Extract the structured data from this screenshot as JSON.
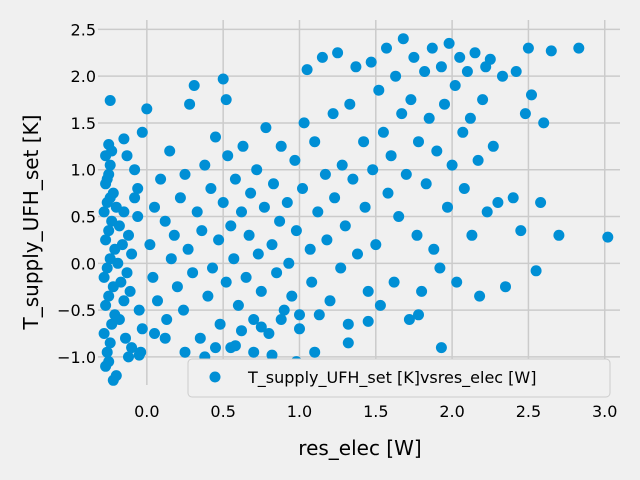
{
  "chart_data": {
    "type": "scatter",
    "title": "",
    "xlabel": "res_elec [W]",
    "ylabel": "T_supply_UFH_set [K]",
    "xlim": [
      -0.32,
      3.1
    ],
    "ylim": [
      -1.3,
      2.6
    ],
    "xticks": [
      0.0,
      0.5,
      1.0,
      1.5,
      2.0,
      2.5,
      3.0
    ],
    "xtick_labels": [
      "0.0",
      "0.5",
      "1.0",
      "1.5",
      "2.0",
      "2.5",
      "3.0"
    ],
    "yticks": [
      -1.0,
      -0.5,
      0.0,
      0.5,
      1.0,
      1.5,
      2.0,
      2.5
    ],
    "ytick_labels": [
      "−1.0",
      "−0.5",
      "0.0",
      "0.5",
      "1.0",
      "1.5",
      "2.0",
      "2.5"
    ],
    "grid": true,
    "legend_position": "lower-right",
    "marker_color": "#008fd5",
    "series": [
      {
        "name": "T_supply_UFH_set [K]vsres_elec [W]",
        "points": [
          [
            -0.27,
            -1.1
          ],
          [
            -0.25,
            -1.05
          ],
          [
            -0.22,
            -1.25
          ],
          [
            -0.2,
            -1.2
          ],
          [
            -0.26,
            -0.95
          ],
          [
            -0.24,
            -0.85
          ],
          [
            -0.28,
            -0.75
          ],
          [
            -0.23,
            -0.65
          ],
          [
            -0.21,
            -0.55
          ],
          [
            -0.27,
            -0.45
          ],
          [
            -0.25,
            -0.35
          ],
          [
            -0.22,
            -0.25
          ],
          [
            -0.28,
            -0.15
          ],
          [
            -0.26,
            -0.05
          ],
          [
            -0.24,
            0.05
          ],
          [
            -0.21,
            0.15
          ],
          [
            -0.27,
            0.25
          ],
          [
            -0.25,
            0.35
          ],
          [
            -0.23,
            0.45
          ],
          [
            -0.28,
            0.55
          ],
          [
            -0.26,
            0.65
          ],
          [
            -0.22,
            0.75
          ],
          [
            -0.27,
            0.85
          ],
          [
            -0.25,
            0.95
          ],
          [
            -0.24,
            1.05
          ],
          [
            -0.27,
            1.15
          ],
          [
            -0.25,
            1.27
          ],
          [
            -0.23,
            1.2
          ],
          [
            -0.26,
            0.9
          ],
          [
            -0.24,
            0.7
          ],
          [
            -0.2,
            0.6
          ],
          [
            -0.18,
            0.4
          ],
          [
            -0.16,
            0.2
          ],
          [
            -0.19,
            0.0
          ],
          [
            -0.17,
            -0.2
          ],
          [
            -0.15,
            -0.4
          ],
          [
            -0.18,
            -0.6
          ],
          [
            -0.14,
            -0.8
          ],
          [
            -0.12,
            -1.0
          ],
          [
            -0.1,
            -0.9
          ],
          [
            -0.15,
            0.55
          ],
          [
            -0.12,
            0.3
          ],
          [
            -0.1,
            0.1
          ],
          [
            -0.13,
            -0.1
          ],
          [
            -0.11,
            -0.3
          ],
          [
            -0.08,
            0.7
          ],
          [
            -0.06,
            0.5
          ],
          [
            -0.05,
            -0.5
          ],
          [
            -0.03,
            -0.7
          ],
          [
            -0.24,
            1.74
          ],
          [
            -0.15,
            1.33
          ],
          [
            -0.13,
            1.15
          ],
          [
            -0.08,
            1.0
          ],
          [
            -0.06,
            0.8
          ],
          [
            -0.03,
            1.4
          ],
          [
            0.0,
            1.65
          ],
          [
            -0.04,
            -0.95
          ],
          [
            0.02,
            0.2
          ],
          [
            0.04,
            -0.15
          ],
          [
            0.05,
            0.6
          ],
          [
            0.07,
            -0.4
          ],
          [
            0.09,
            0.9
          ],
          [
            0.12,
            0.45
          ],
          [
            0.13,
            -0.6
          ],
          [
            0.15,
            1.2
          ],
          [
            0.16,
            0.05
          ],
          [
            0.18,
            0.3
          ],
          [
            0.2,
            -0.25
          ],
          [
            0.22,
            0.7
          ],
          [
            0.24,
            -0.5
          ],
          [
            0.25,
            0.95
          ],
          [
            0.27,
            0.15
          ],
          [
            0.28,
            1.7
          ],
          [
            0.3,
            -0.1
          ],
          [
            0.31,
            1.9
          ],
          [
            0.33,
            0.55
          ],
          [
            0.35,
            -0.8
          ],
          [
            0.36,
            0.35
          ],
          [
            0.38,
            1.05
          ],
          [
            0.4,
            -0.35
          ],
          [
            0.42,
            0.8
          ],
          [
            0.43,
            -0.05
          ],
          [
            0.45,
            1.35
          ],
          [
            0.47,
            0.25
          ],
          [
            0.48,
            -0.65
          ],
          [
            0.5,
            0.65
          ],
          [
            0.52,
            -0.2
          ],
          [
            0.53,
            1.15
          ],
          [
            0.55,
            0.4
          ],
          [
            0.5,
            1.97
          ],
          [
            0.52,
            1.75
          ],
          [
            0.55,
            -0.9
          ],
          [
            0.57,
            0.05
          ],
          [
            0.58,
            0.9
          ],
          [
            0.6,
            -0.45
          ],
          [
            0.62,
            0.55
          ],
          [
            0.63,
            1.25
          ],
          [
            0.65,
            -0.15
          ],
          [
            0.67,
            0.3
          ],
          [
            0.68,
            0.75
          ],
          [
            0.7,
            -0.6
          ],
          [
            0.72,
            1.0
          ],
          [
            0.73,
            0.1
          ],
          [
            0.75,
            -0.3
          ],
          [
            0.77,
            0.6
          ],
          [
            0.78,
            1.45
          ],
          [
            0.8,
            -0.75
          ],
          [
            0.82,
            0.2
          ],
          [
            0.83,
            0.85
          ],
          [
            0.85,
            -0.1
          ],
          [
            0.87,
            0.45
          ],
          [
            0.88,
            1.25
          ],
          [
            0.9,
            -0.5
          ],
          [
            0.92,
            0.65
          ],
          [
            0.93,
            0.0
          ],
          [
            0.95,
            -0.35
          ],
          [
            0.97,
            1.1
          ],
          [
            0.98,
            0.35
          ],
          [
            1.0,
            -0.7
          ],
          [
            1.02,
            0.8
          ],
          [
            1.03,
            1.5
          ],
          [
            1.05,
            2.07
          ],
          [
            1.07,
            0.15
          ],
          [
            1.08,
            -0.2
          ],
          [
            1.1,
            1.3
          ],
          [
            1.12,
            0.55
          ],
          [
            1.13,
            -0.55
          ],
          [
            1.15,
            2.2
          ],
          [
            1.17,
            0.95
          ],
          [
            1.18,
            0.25
          ],
          [
            1.2,
            -0.4
          ],
          [
            1.22,
            1.6
          ],
          [
            1.23,
            0.7
          ],
          [
            1.25,
            2.25
          ],
          [
            1.27,
            -0.05
          ],
          [
            1.28,
            1.05
          ],
          [
            1.3,
            0.4
          ],
          [
            1.32,
            -0.65
          ],
          [
            1.33,
            1.7
          ],
          [
            1.35,
            0.9
          ],
          [
            1.37,
            2.1
          ],
          [
            1.38,
            0.1
          ],
          [
            1.4,
            -1.23
          ],
          [
            1.42,
            1.3
          ],
          [
            1.43,
            0.6
          ],
          [
            1.45,
            -0.3
          ],
          [
            1.47,
            2.15
          ],
          [
            1.48,
            1.0
          ],
          [
            1.5,
            0.2
          ],
          [
            1.52,
            1.85
          ],
          [
            1.53,
            -0.45
          ],
          [
            1.55,
            1.4
          ],
          [
            1.57,
            2.3
          ],
          [
            1.58,
            0.75
          ],
          [
            1.6,
            1.15
          ],
          [
            1.62,
            -0.2
          ],
          [
            1.63,
            2.0
          ],
          [
            1.65,
            0.5
          ],
          [
            1.67,
            1.6
          ],
          [
            1.68,
            2.4
          ],
          [
            1.7,
            0.95
          ],
          [
            1.72,
            -0.6
          ],
          [
            1.73,
            1.75
          ],
          [
            1.75,
            2.2
          ],
          [
            1.77,
            0.3
          ],
          [
            1.78,
            1.3
          ],
          [
            1.8,
            -0.3
          ],
          [
            1.82,
            2.05
          ],
          [
            1.83,
            0.85
          ],
          [
            1.85,
            1.55
          ],
          [
            1.87,
            2.3
          ],
          [
            1.88,
            0.15
          ],
          [
            1.9,
            1.2
          ],
          [
            1.92,
            -0.05
          ],
          [
            1.93,
            2.1
          ],
          [
            1.95,
            1.7
          ],
          [
            1.97,
            0.6
          ],
          [
            1.98,
            2.35
          ],
          [
            2.0,
            1.05
          ],
          [
            2.02,
            1.9
          ],
          [
            2.03,
            -0.2
          ],
          [
            2.05,
            2.2
          ],
          [
            2.07,
            1.4
          ],
          [
            2.08,
            0.8
          ],
          [
            2.1,
            2.05
          ],
          [
            2.12,
            1.55
          ],
          [
            2.13,
            0.3
          ],
          [
            2.15,
            2.25
          ],
          [
            2.17,
            1.1
          ],
          [
            2.18,
            -0.35
          ],
          [
            2.2,
            1.75
          ],
          [
            2.22,
            2.1
          ],
          [
            2.23,
            0.55
          ],
          [
            2.25,
            2.18
          ],
          [
            2.27,
            1.25
          ],
          [
            2.3,
            0.65
          ],
          [
            2.33,
            2.0
          ],
          [
            2.35,
            -0.25
          ],
          [
            2.4,
            0.7
          ],
          [
            2.42,
            2.05
          ],
          [
            2.45,
            0.35
          ],
          [
            2.48,
            1.6
          ],
          [
            2.5,
            2.3
          ],
          [
            2.52,
            1.8
          ],
          [
            2.55,
            -0.08
          ],
          [
            2.58,
            0.65
          ],
          [
            2.6,
            1.5
          ],
          [
            2.65,
            2.27
          ],
          [
            2.7,
            0.3
          ],
          [
            2.83,
            2.3
          ],
          [
            3.02,
            0.28
          ],
          [
            1.93,
            -0.9
          ],
          [
            1.78,
            -0.55
          ],
          [
            1.45,
            -0.62
          ],
          [
            1.32,
            -0.85
          ],
          [
            1.1,
            -0.95
          ],
          [
            0.98,
            -1.05
          ],
          [
            0.82,
            -0.98
          ],
          [
            0.7,
            -0.95
          ],
          [
            0.58,
            -0.88
          ],
          [
            0.45,
            -0.9
          ],
          [
            0.38,
            -1.0
          ],
          [
            0.25,
            -0.95
          ],
          [
            0.12,
            -0.8
          ],
          [
            0.05,
            -0.75
          ],
          [
            -0.05,
            -0.98
          ],
          [
            0.62,
            -0.72
          ],
          [
            0.75,
            -0.68
          ],
          [
            0.88,
            -0.6
          ],
          [
            1.0,
            -0.55
          ]
        ]
      }
    ]
  }
}
